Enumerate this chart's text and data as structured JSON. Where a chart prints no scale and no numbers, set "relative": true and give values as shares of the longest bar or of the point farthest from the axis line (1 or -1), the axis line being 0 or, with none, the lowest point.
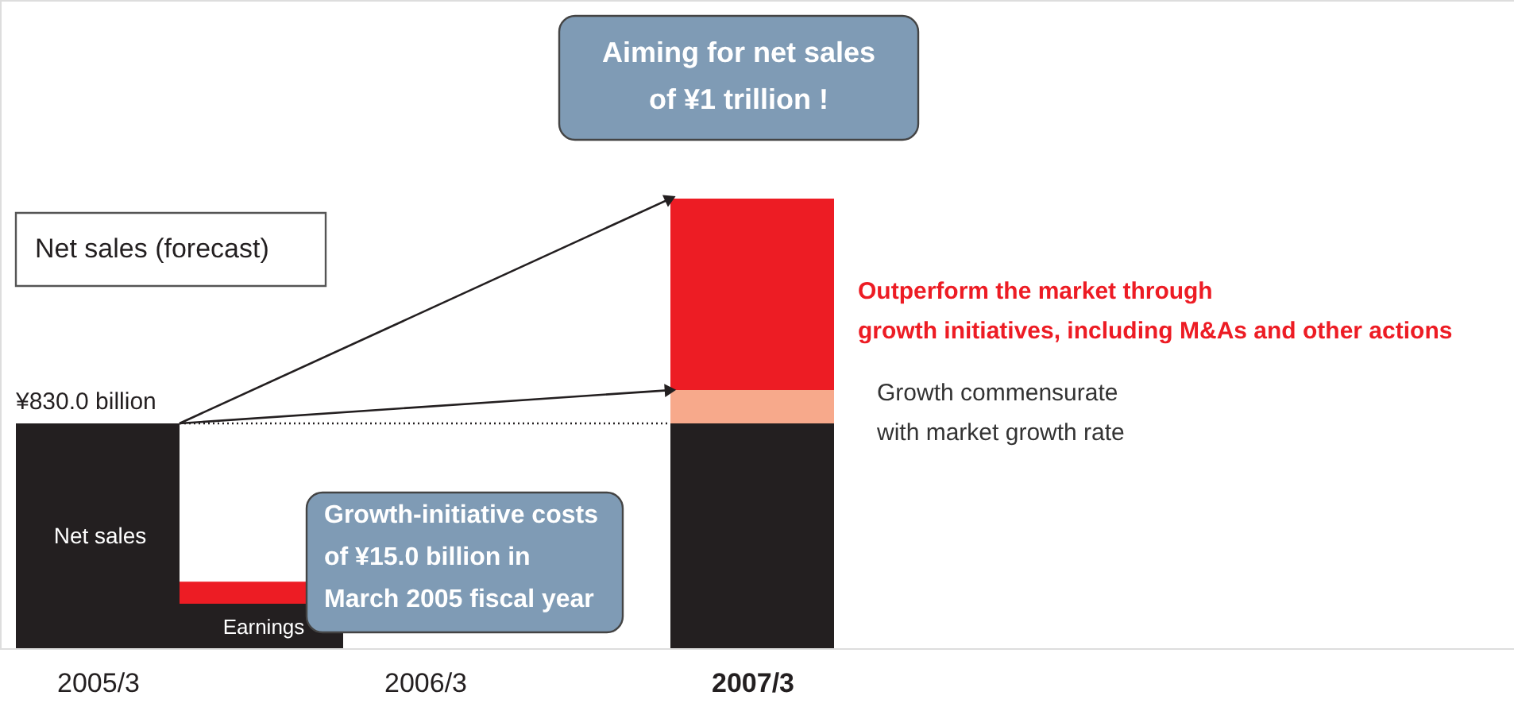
{
  "chart_data": {
    "type": "bar",
    "relative": true,
    "stacked": true,
    "categories": [
      "2005/3",
      null,
      "2006/3",
      null,
      "2007/3"
    ],
    "series": [
      {
        "color": "#231f20",
        "values": [
          0.5,
          0.099,
          null,
          null,
          0.5
        ]
      },
      {
        "color": "#f7a98b",
        "values": [
          null,
          null,
          null,
          null,
          0.074
        ]
      },
      {
        "color": "#ed1c24",
        "values": [
          null,
          0.049,
          null,
          null,
          0.426
        ]
      }
    ],
    "ref_lines": [
      {
        "axis": "y",
        "value": 0.5,
        "line_style": "dotted",
        "color": "#231f20"
      }
    ],
    "annotations": [
      "Net sales (forecast)",
      {
        "text": "¥830.0 billion",
        "x": "2005/3",
        "y": 0.5
      },
      "Net sales",
      "Earnings",
      "Aiming for net sales\nof ¥1 trillion !",
      "Growth-initiative costs\nof ¥15.0 billion in\nMarch 2005 fiscal year",
      "Outperform the market through\ngrowth initiatives, including M&As and other actions",
      "Growth commensurate\nwith market growth rate"
    ]
  }
}
